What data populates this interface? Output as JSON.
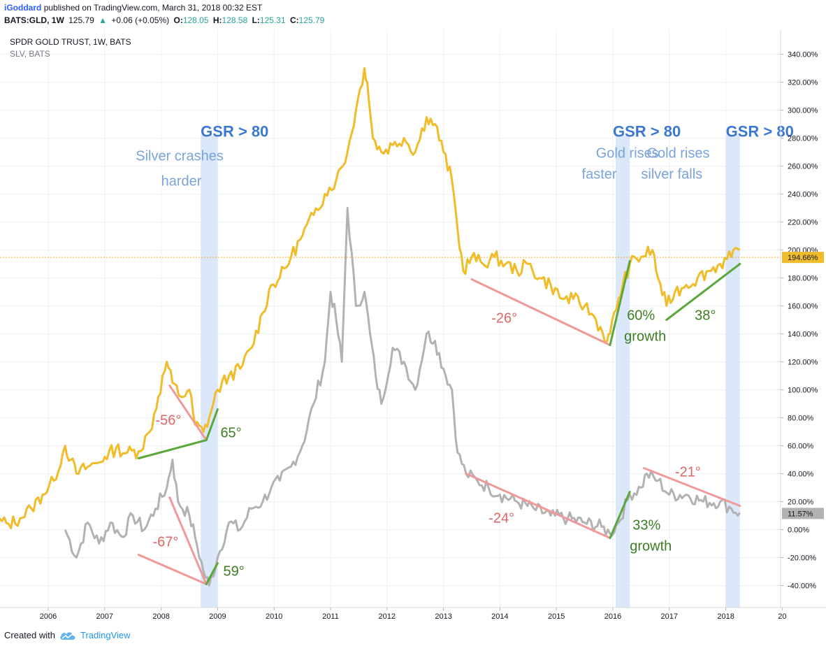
{
  "header": {
    "author": "iGoddard",
    "published": "published on TradingView.com, March 31, 2018 00:32 EST",
    "symbol": "BATS:GLD, 1W",
    "last": "125.79",
    "change_arrow": "▲",
    "change": "+0.06 (+0.05%)",
    "o_label": "O:",
    "o": "128.05",
    "h_label": "H:",
    "h": "128.58",
    "l_label": "L:",
    "l": "125.31",
    "c_label": "C:",
    "c": "125.79"
  },
  "legend": {
    "main": "SPDR GOLD TRUST, 1W, BATS",
    "compare": "SLV, BATS"
  },
  "footer": {
    "created_with": "Created with",
    "brand": "TradingView",
    "brand_icon": "tradingview-cloud-icon"
  },
  "chart_data": {
    "type": "line",
    "xlabel": "",
    "ylabel": "",
    "x_ticks": [
      "2006",
      "2007",
      "2008",
      "2009",
      "2010",
      "2011",
      "2012",
      "2013",
      "2014",
      "2015",
      "2016",
      "2017",
      "2018",
      "20"
    ],
    "ylim": [
      -50,
      350
    ],
    "y_ticks": [
      "340.00%",
      "320.00%",
      "300.00%",
      "280.00%",
      "260.00%",
      "240.00%",
      "220.00%",
      "200.00%",
      "180.00%",
      "160.00%",
      "140.00%",
      "120.00%",
      "100.00%",
      "80.00%",
      "60.00%",
      "40.00%",
      "20.00%",
      "0.00%",
      "-20.00%",
      "-40.00%"
    ],
    "y_tick_values": [
      340,
      320,
      300,
      280,
      260,
      240,
      220,
      200,
      180,
      160,
      140,
      120,
      100,
      80,
      60,
      40,
      20,
      0,
      -20,
      -40
    ],
    "grid": true,
    "colors": {
      "gold": "#f0bc2a",
      "silver": "#b2b2b2",
      "green": "#5aa83c",
      "red": "#f09999",
      "blue_text": "#3a78d4",
      "light_blue_text": "#7aa3dc",
      "band": "#cfe0f8",
      "price_line": "#f5a623"
    },
    "series": [
      {
        "key": "gold",
        "x": [
          2005.1,
          2005.3,
          2005.5,
          2005.7,
          2005.9,
          2006.1,
          2006.3,
          2006.4,
          2006.5,
          2006.7,
          2006.9,
          2007.0,
          2007.2,
          2007.4,
          2007.6,
          2007.8,
          2007.95,
          2008.1,
          2008.2,
          2008.35,
          2008.5,
          2008.6,
          2008.75,
          2008.85,
          2009.0,
          2009.2,
          2009.4,
          2009.6,
          2009.8,
          2009.95,
          2010.1,
          2010.3,
          2010.5,
          2010.7,
          2010.9,
          2011.1,
          2011.3,
          2011.45,
          2011.6,
          2011.65,
          2011.75,
          2011.9,
          2012.1,
          2012.3,
          2012.5,
          2012.7,
          2012.85,
          2013.0,
          2013.15,
          2013.25,
          2013.35,
          2013.5,
          2013.7,
          2013.9,
          2014.1,
          2014.3,
          2014.5,
          2014.7,
          2014.9,
          2015.1,
          2015.3,
          2015.5,
          2015.7,
          2015.9,
          2015.95,
          2016.1,
          2016.3,
          2016.5,
          2016.7,
          2016.8,
          2016.95,
          2017.1,
          2017.3,
          2017.5,
          2017.7,
          2017.9,
          2018.1,
          2018.25
        ],
        "values": [
          6,
          4,
          8,
          15,
          25,
          35,
          60,
          50,
          40,
          45,
          48,
          52,
          58,
          55,
          56,
          70,
          95,
          120,
          105,
          95,
          100,
          75,
          70,
          80,
          100,
          110,
          115,
          130,
          155,
          175,
          180,
          195,
          210,
          225,
          240,
          250,
          270,
          300,
          330,
          320,
          280,
          270,
          275,
          280,
          270,
          295,
          290,
          270,
          250,
          215,
          185,
          195,
          190,
          195,
          190,
          185,
          190,
          180,
          175,
          165,
          165,
          160,
          150,
          135,
          140,
          165,
          190,
          195,
          200,
          180,
          160,
          170,
          175,
          180,
          185,
          190,
          195,
          200
        ]
      },
      {
        "key": "silver",
        "x": [
          2006.3,
          2006.5,
          2006.7,
          2006.9,
          2007.1,
          2007.3,
          2007.5,
          2007.7,
          2007.9,
          2008.1,
          2008.2,
          2008.3,
          2008.5,
          2008.6,
          2008.75,
          2008.85,
          2009.0,
          2009.2,
          2009.4,
          2009.6,
          2009.8,
          2009.95,
          2010.1,
          2010.3,
          2010.5,
          2010.7,
          2010.9,
          2011.0,
          2011.1,
          2011.2,
          2011.3,
          2011.45,
          2011.6,
          2011.7,
          2011.8,
          2011.9,
          2012.1,
          2012.3,
          2012.5,
          2012.7,
          2012.85,
          2013.0,
          2013.15,
          2013.25,
          2013.4,
          2013.6,
          2013.8,
          2014.0,
          2014.3,
          2014.6,
          2014.9,
          2015.2,
          2015.5,
          2015.8,
          2015.95,
          2016.1,
          2016.3,
          2016.5,
          2016.6,
          2016.8,
          2017.0,
          2017.3,
          2017.6,
          2017.9,
          2018.1,
          2018.25
        ],
        "values": [
          0,
          -20,
          5,
          -10,
          5,
          -5,
          10,
          0,
          15,
          30,
          50,
          20,
          10,
          -5,
          -30,
          -40,
          -20,
          5,
          0,
          15,
          20,
          30,
          35,
          45,
          60,
          90,
          120,
          170,
          150,
          120,
          230,
          160,
          170,
          140,
          110,
          90,
          130,
          120,
          100,
          140,
          135,
          115,
          100,
          55,
          40,
          35,
          30,
          25,
          20,
          15,
          10,
          8,
          5,
          2,
          -3,
          5,
          25,
          30,
          40,
          35,
          25,
          25,
          20,
          20,
          15,
          12
        ]
      }
    ],
    "annotations": {
      "bands": [
        {
          "from": 2008.7,
          "to": 2009.0
        },
        {
          "from": 2016.05,
          "to": 2016.3
        },
        {
          "from": 2018.0,
          "to": 2018.25
        }
      ],
      "band_labels": [
        {
          "text": "GSR > 80",
          "x": 2008.7,
          "y": 281
        },
        {
          "text": "GSR > 80",
          "x": 2016.0,
          "y": 281
        },
        {
          "text": "GSR > 80",
          "x": 2018.0,
          "y": 281
        }
      ],
      "notes": [
        {
          "text": "Silver crashes",
          "x": 2007.55,
          "y": 264
        },
        {
          "text": "harder",
          "x": 2008.0,
          "y": 246
        },
        {
          "text": "Gold rises",
          "x": 2015.7,
          "y": 266
        },
        {
          "text": "faster",
          "x": 2015.45,
          "y": 251
        },
        {
          "text": "Gold rises",
          "x": 2016.6,
          "y": 266
        },
        {
          "text": "silver falls",
          "x": 2016.5,
          "y": 251
        }
      ],
      "lines": [
        {
          "color": "green",
          "points": [
            [
              2007.6,
              51
            ],
            [
              2008.8,
              64
            ]
          ]
        },
        {
          "color": "red",
          "points": [
            [
              2008.15,
              103
            ],
            [
              2008.8,
              64
            ]
          ]
        },
        {
          "color": "green",
          "points": [
            [
              2008.8,
              64
            ],
            [
              2009.0,
              86
            ]
          ]
        },
        {
          "color": "red",
          "points": [
            [
              2007.6,
              -18
            ],
            [
              2008.8,
              -39
            ]
          ]
        },
        {
          "color": "red",
          "points": [
            [
              2008.15,
              23
            ],
            [
              2008.8,
              -39
            ]
          ]
        },
        {
          "color": "green",
          "points": [
            [
              2008.8,
              -39
            ],
            [
              2009.0,
              -24
            ]
          ]
        },
        {
          "color": "red",
          "points": [
            [
              2013.5,
              179
            ],
            [
              2015.95,
              132
            ]
          ]
        },
        {
          "color": "green",
          "points": [
            [
              2015.95,
              132
            ],
            [
              2016.3,
              192
            ]
          ]
        },
        {
          "color": "green",
          "points": [
            [
              2016.95,
              150
            ],
            [
              2018.25,
              190
            ]
          ]
        },
        {
          "color": "red",
          "points": [
            [
              2013.4,
              40
            ],
            [
              2015.95,
              -6
            ]
          ]
        },
        {
          "color": "green",
          "points": [
            [
              2015.95,
              -6
            ],
            [
              2016.3,
              27
            ]
          ]
        },
        {
          "color": "red",
          "points": [
            [
              2016.55,
              44
            ],
            [
              2018.25,
              17
            ]
          ]
        }
      ],
      "angle_labels": [
        {
          "text": "-56°",
          "x": 2007.9,
          "y": 75,
          "color": "red"
        },
        {
          "text": "65°",
          "x": 2009.05,
          "y": 66,
          "color": "green"
        },
        {
          "text": "-67°",
          "x": 2007.85,
          "y": -12,
          "color": "red"
        },
        {
          "text": "59°",
          "x": 2009.1,
          "y": -33,
          "color": "green"
        },
        {
          "text": "-26°",
          "x": 2013.85,
          "y": 148,
          "color": "red"
        },
        {
          "text": "60%",
          "x": 2016.25,
          "y": 150,
          "color": "green"
        },
        {
          "text": "growth",
          "x": 2016.2,
          "y": 135,
          "color": "green"
        },
        {
          "text": "38°",
          "x": 2017.45,
          "y": 150,
          "color": "green"
        },
        {
          "text": "-24°",
          "x": 2013.8,
          "y": 5,
          "color": "red"
        },
        {
          "text": "33%",
          "x": 2016.35,
          "y": 0,
          "color": "green"
        },
        {
          "text": "growth",
          "x": 2016.3,
          "y": -15,
          "color": "green"
        },
        {
          "text": "-21°",
          "x": 2017.1,
          "y": 38,
          "color": "red"
        }
      ]
    },
    "price_line": {
      "value": 194.66,
      "label": "194.66%"
    },
    "silver_last": {
      "value": 11.57,
      "label": "11.57%"
    }
  }
}
